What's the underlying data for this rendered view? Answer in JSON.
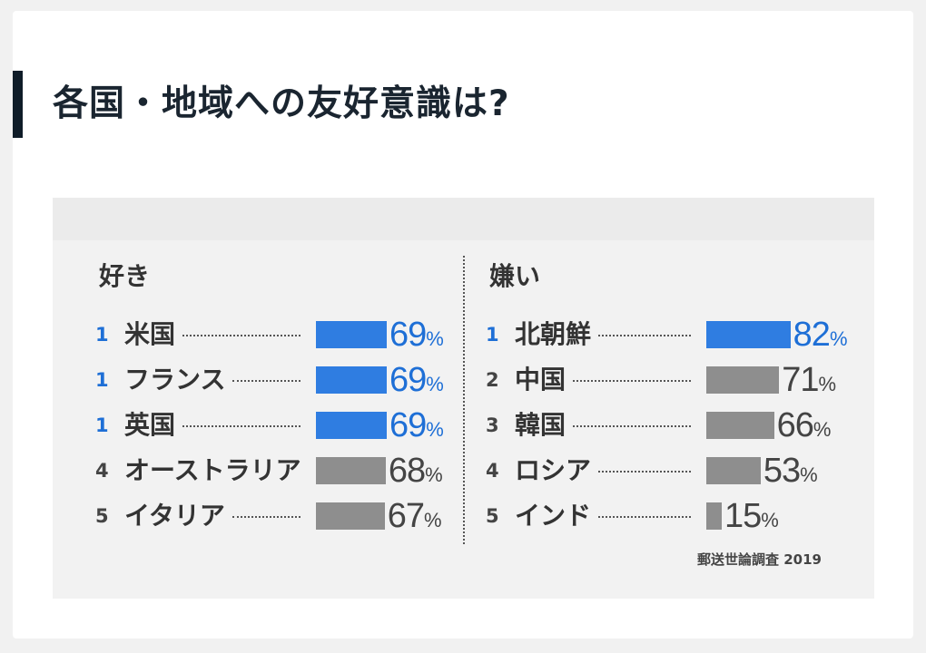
{
  "title": "各国・地域への友好意識は?",
  "chart_data": [
    {
      "type": "bar",
      "title": "好き",
      "orientation": "horizontal",
      "ranks": [
        "1",
        "1",
        "1",
        "4",
        "5"
      ],
      "categories": [
        "米国",
        "フランス",
        "英国",
        "オーストラリア",
        "イタリア"
      ],
      "values": [
        69,
        69,
        69,
        68,
        67
      ],
      "value_labels": [
        "69",
        "69",
        "69",
        "68",
        "67"
      ],
      "unit": "%",
      "highlight_color": "#2f7de1",
      "base_color": "#8e8e8e"
    },
    {
      "type": "bar",
      "title": "嫌い",
      "orientation": "horizontal",
      "ranks": [
        "1",
        "2",
        "3",
        "4",
        "5"
      ],
      "categories": [
        "北朝鮮",
        "中国",
        "韓国",
        "ロシア",
        "インド"
      ],
      "values": [
        82,
        71,
        66,
        53,
        15
      ],
      "value_labels": [
        "82",
        "71",
        "66",
        "53",
        "15"
      ],
      "unit": "%",
      "highlight_color": "#2f7de1",
      "base_color": "#8e8e8e"
    }
  ],
  "source": "郵送世論調査 2019"
}
